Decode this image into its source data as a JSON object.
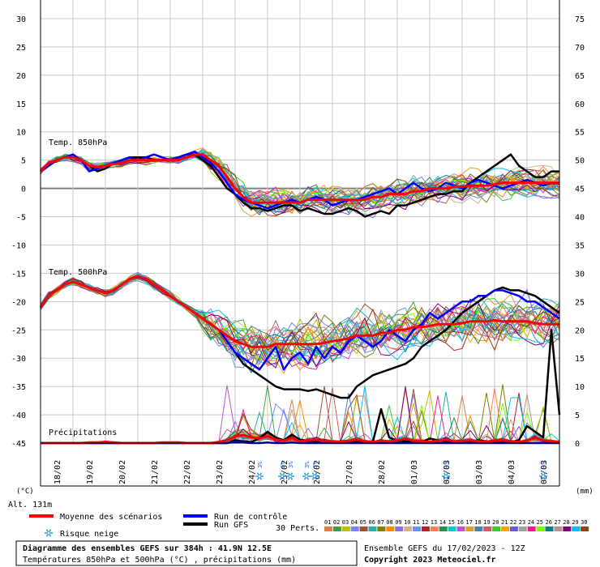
{
  "chart_data": {
    "type": "line",
    "title": "Diagramme des ensembles GEFS sur 384h : 41.9N 12.5E",
    "subtitle": "Températures 850hPa et 500hPa (°C) , précipitations (mm)",
    "run_info": "Ensemble GEFS du 17/02/2023 - 12Z",
    "copyright": "Copyright 2023 Meteociel.fr",
    "altitude": "Alt. 131m",
    "left_unit": "(°C)",
    "right_unit": "(mm)",
    "left_axis": {
      "range": [
        -45,
        30
      ],
      "ticks": [
        30,
        25,
        20,
        15,
        10,
        5,
        0,
        -5,
        -10,
        -15,
        -20,
        -25,
        -30,
        -35,
        -40,
        -45
      ]
    },
    "right_axis": {
      "range": [
        0,
        75
      ],
      "ticks": [
        75,
        70,
        65,
        60,
        55,
        50,
        45,
        40,
        35,
        30,
        25,
        20,
        15,
        10,
        5,
        0
      ]
    },
    "x_labels": [
      "18/02",
      "19/02",
      "20/02",
      "21/02",
      "22/02",
      "23/02",
      "24/02",
      "25/02",
      "26/02",
      "27/02",
      "28/02",
      "01/03",
      "02/03",
      "03/03",
      "04/03",
      "05/03"
    ],
    "x_label_day_index": [
      0.5,
      1.5,
      2.5,
      3.5,
      4.5,
      5.5,
      6.5,
      7.5,
      8.5,
      9.5,
      10.5,
      11.5,
      12.5,
      13.5,
      14.5,
      15.5
    ],
    "panel_labels": {
      "t850": "Temp. 850hPa",
      "t500": "Temp. 500hPa",
      "precip": "Précipitations"
    },
    "legend": {
      "mean": "Moyenne des scénarios",
      "control": "Run de contrôle",
      "gfs": "Run GFS",
      "snow": "Risque neige",
      "perts": "30 Perts."
    },
    "colors": {
      "mean": "#ff0000",
      "control": "#0000ff",
      "gfs": "#000000",
      "grid": "#c8c8c8"
    },
    "member_labels": [
      "01",
      "02",
      "03",
      "04",
      "05",
      "06",
      "07",
      "08",
      "09",
      "10",
      "11",
      "12",
      "13",
      "14",
      "15",
      "16",
      "17",
      "18",
      "19",
      "20",
      "21",
      "22",
      "23",
      "24",
      "25",
      "26",
      "27",
      "28",
      "29",
      "30"
    ],
    "member_colors": [
      "#e08040",
      "#40a040",
      "#c0c000",
      "#8080ff",
      "#a0522d",
      "#20b2aa",
      "#808000",
      "#ff8c00",
      "#9370db",
      "#d2b48c",
      "#6495ed",
      "#b22222",
      "#ff7f50",
      "#2e8b57",
      "#00ced1",
      "#ba55d3",
      "#daa520",
      "#4682b4",
      "#cd5c5c",
      "#32cd32",
      "#ffa500",
      "#6a5acd",
      "#a0a0a0",
      "#ff1493",
      "#7cfc00",
      "#008080",
      "#bc8f8f",
      "#800080",
      "#00bfff",
      "#8b4513"
    ],
    "snow_markers": [
      {
        "day": 6.75,
        "label": "3%"
      },
      {
        "day": 7.45,
        "label": "6%"
      },
      {
        "day": 7.7,
        "label": "3%"
      },
      {
        "day": 8.2,
        "label": "3%"
      },
      {
        "day": 8.45,
        "label": "3%"
      },
      {
        "day": 12.5,
        "label": "3%"
      },
      {
        "day": 15.5,
        "label": "3%"
      }
    ],
    "series": [
      {
        "name": "Moyenne des scénarios",
        "field": "t850",
        "day_step": 0.25,
        "values": [
          3,
          4.5,
          5,
          5.5,
          5.5,
          5,
          4,
          3.8,
          4,
          4.3,
          4.5,
          5,
          5,
          5,
          5,
          5,
          5,
          5,
          5.5,
          6,
          6,
          5,
          4,
          2,
          0,
          -1.5,
          -2.5,
          -2.5,
          -2.5,
          -2.5,
          -2.5,
          -2.5,
          -2.5,
          -2,
          -2,
          -2,
          -2,
          -2,
          -2,
          -2,
          -2,
          -1.5,
          -1.5,
          -1,
          -1,
          -1,
          -0.5,
          -0.5,
          0,
          0,
          0,
          0.3,
          0.3,
          0.5,
          0.5,
          0.5,
          0.7,
          1,
          1,
          1,
          1,
          1,
          1,
          1,
          1
        ]
      },
      {
        "name": "Moyenne des scénarios",
        "field": "t500",
        "day_step": 0.25,
        "values": [
          -21,
          -19,
          -18,
          -17,
          -16.5,
          -17,
          -17.5,
          -18,
          -18.5,
          -18,
          -17,
          -16,
          -15.5,
          -16,
          -17,
          -18,
          -19,
          -20,
          -21,
          -22,
          -23,
          -24,
          -25,
          -26,
          -27,
          -27.5,
          -28,
          -28,
          -28,
          -27.5,
          -27.5,
          -27.5,
          -27.5,
          -27.5,
          -27.5,
          -27.3,
          -27,
          -26.8,
          -26.5,
          -26,
          -26,
          -26,
          -25.5,
          -25.5,
          -25,
          -25,
          -24.5,
          -24.5,
          -24.3,
          -24,
          -24,
          -24,
          -23.8,
          -23.5,
          -23.5,
          -23.5,
          -23.3,
          -23.5,
          -23.5,
          -23.5,
          -23.5,
          -23.8,
          -24,
          -24,
          -24
        ]
      },
      {
        "name": "Run de contrôle",
        "field": "t850",
        "day_step": 0.25,
        "values": [
          3,
          4,
          5,
          5.5,
          6,
          5,
          3,
          3.5,
          4,
          4.5,
          5,
          5.5,
          5,
          5.5,
          6,
          5.5,
          5,
          5.5,
          6,
          6.5,
          5.5,
          4.5,
          3,
          1,
          -1,
          -2,
          -2.5,
          -3,
          -3.5,
          -3,
          -2.5,
          -2,
          -2.5,
          -2,
          -1.5,
          -2,
          -3,
          -2.5,
          -2,
          -2,
          -1.5,
          -1,
          -0.5,
          0,
          -1,
          0,
          1,
          0,
          -0.5,
          0,
          1,
          0.5,
          0,
          1,
          1.5,
          1,
          0.5,
          0,
          0.5,
          1,
          1.5,
          1,
          0.5,
          1,
          1
        ]
      },
      {
        "name": "Run de contrôle",
        "field": "t500",
        "day_step": 0.25,
        "values": [
          -21,
          -19,
          -18,
          -17,
          -16.5,
          -17,
          -17.5,
          -18,
          -18.5,
          -18,
          -17,
          -16,
          -15.5,
          -16,
          -17,
          -18,
          -19,
          -20,
          -21,
          -22,
          -23,
          -24,
          -25,
          -27,
          -29,
          -30,
          -31,
          -32,
          -30,
          -28,
          -32,
          -30,
          -29,
          -31,
          -28,
          -30,
          -28,
          -29,
          -27,
          -26,
          -27,
          -28,
          -27,
          -25,
          -26,
          -27,
          -25,
          -24,
          -22,
          -23,
          -22,
          -21,
          -20,
          -20,
          -19,
          -19,
          -18,
          -18,
          -18.5,
          -19,
          -20,
          -20,
          -21,
          -22,
          -23
        ]
      },
      {
        "name": "Run GFS",
        "field": "t850",
        "day_step": 0.25,
        "values": [
          3,
          4,
          5,
          5.5,
          5.5,
          5,
          4,
          3,
          3.5,
          4.5,
          5,
          5.5,
          5.5,
          5.5,
          5,
          5,
          5,
          5.5,
          6,
          6,
          5,
          4,
          2,
          0,
          -1,
          -2.5,
          -3.5,
          -3.5,
          -4,
          -3.5,
          -3,
          -3,
          -4,
          -3.5,
          -4,
          -4.5,
          -4.5,
          -4,
          -3.5,
          -4,
          -5,
          -4.5,
          -4,
          -4.5,
          -3,
          -3,
          -2.5,
          -2,
          -1.5,
          -1,
          -1,
          -0.5,
          -0.5,
          1,
          2,
          3,
          4,
          5,
          6,
          4,
          3,
          2,
          2,
          3,
          3
        ]
      },
      {
        "name": "Run GFS",
        "field": "t500",
        "day_step": 0.25,
        "values": [
          -21,
          -19,
          -18,
          -17,
          -16.5,
          -17,
          -17.5,
          -18,
          -18.5,
          -18,
          -17,
          -16,
          -15.5,
          -16,
          -17,
          -18,
          -19,
          -20,
          -21,
          -22,
          -23,
          -24,
          -25,
          -27,
          -29,
          -31,
          -32,
          -33,
          -34,
          -35,
          -35.5,
          -35.5,
          -35.5,
          -35.8,
          -35.5,
          -36,
          -36.5,
          -37,
          -37,
          -35,
          -34,
          -33,
          -32.5,
          -32,
          -31.5,
          -31,
          -30,
          -28,
          -27,
          -26,
          -25,
          -23.5,
          -22,
          -21,
          -20,
          -19,
          -18,
          -17.5,
          -18,
          -18,
          -18.5,
          -19,
          -20,
          -21,
          -22
        ]
      },
      {
        "name": "Moyenne des scénarios",
        "field": "precip",
        "day_step": 0.25,
        "values": [
          0,
          0,
          0,
          0,
          0,
          0,
          0.1,
          0.1,
          0.2,
          0.1,
          0,
          0,
          0,
          0,
          0,
          0.1,
          0.1,
          0.1,
          0,
          0,
          0,
          0,
          0.2,
          0.5,
          1.2,
          1.4,
          1.0,
          0.8,
          1.2,
          0.6,
          0.4,
          0.9,
          0.3,
          0.5,
          0.6,
          0.4,
          0.3,
          0.2,
          0.4,
          0.6,
          0.3,
          0.2,
          0.4,
          0.3,
          0.5,
          0.8,
          0.4,
          0.3,
          0.2,
          0.4,
          0.6,
          0.3,
          0.4,
          0.5,
          0.3,
          0.2,
          0.4,
          0.5,
          0.3,
          0.2,
          0.4,
          1.0,
          0.5,
          0.3,
          0.2
        ]
      },
      {
        "name": "Run de contrôle",
        "field": "precip",
        "day_step": 0.25,
        "values": [
          0,
          0,
          0,
          0,
          0,
          0,
          0,
          0,
          0,
          0,
          0,
          0,
          0,
          0,
          0,
          0,
          0,
          0,
          0,
          0,
          0,
          0,
          0,
          0,
          0.2,
          0.1,
          0,
          0,
          0.1,
          0,
          0,
          0.1,
          0,
          0,
          0,
          0,
          0,
          0,
          0,
          0,
          0,
          0,
          0,
          0,
          0,
          0,
          0,
          0,
          0,
          0,
          0,
          0,
          0,
          0,
          0,
          0,
          0,
          0,
          0,
          0,
          0,
          0,
          0,
          0,
          0
        ]
      },
      {
        "name": "Run GFS",
        "field": "precip",
        "day_step": 0.25,
        "values": [
          0,
          0,
          0,
          0,
          0,
          0,
          0,
          0,
          0,
          0,
          0,
          0,
          0,
          0,
          0,
          0,
          0,
          0,
          0,
          0,
          0,
          0,
          0,
          0,
          0.5,
          0.3,
          0.2,
          0.8,
          2,
          1,
          0.5,
          1.5,
          0.6,
          0.4,
          0.3,
          0.5,
          0.2,
          0.3,
          0.4,
          0.2,
          0.1,
          0.3,
          6,
          1,
          0.4,
          0.3,
          0.2,
          0.2,
          0.8,
          0.5,
          0.3,
          0.2,
          0.4,
          0.2,
          0.5,
          0.3,
          0.2,
          0.3,
          0.2,
          0.5,
          3,
          2,
          1,
          20,
          5
        ]
      }
    ]
  }
}
